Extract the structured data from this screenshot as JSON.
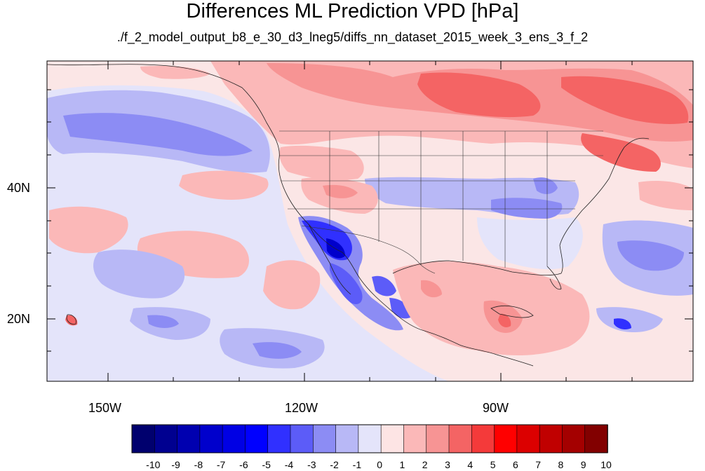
{
  "title": "Differences ML Prediction VPD [hPa]",
  "subtitle": "./f_2_model_output_b8_e_30_d3_lneg5/diffs_nn_dataset_2015_week_3_ens_3_f_2",
  "axes": {
    "lon_labels": [
      "150W",
      "120W",
      "90W"
    ],
    "lat_labels": [
      "40N",
      "20N"
    ]
  },
  "colorbar": {
    "labels": [
      "-10",
      "-9",
      "-8",
      "-7",
      "-6",
      "-5",
      "-4",
      "-3",
      "-2",
      "-1",
      "0",
      "1",
      "2",
      "3",
      "4",
      "5",
      "6",
      "7",
      "8",
      "9",
      "10"
    ],
    "colors": [
      "#00006e",
      "#000090",
      "#0000b0",
      "#0000cc",
      "#0000e4",
      "#0000ff",
      "#3030ff",
      "#5c5cf8",
      "#8c8cf4",
      "#b8b8f6",
      "#e4e4fa",
      "#fde4e4",
      "#fbb8b8",
      "#f79494",
      "#f46464",
      "#f43a3a",
      "#ff0000",
      "#dc0000",
      "#c00000",
      "#a40000",
      "#820000"
    ]
  },
  "colors": {
    "background_neutral": "#fbeaea",
    "positive_light": "#fbb8b8",
    "positive_medium": "#f79494",
    "positive_strong": "#f46464",
    "negative_light": "#b8b8f6",
    "negative_medium": "#8c8cf4",
    "negative_strong": "#3030ff",
    "land_neutral": "#e4e4fa"
  }
}
